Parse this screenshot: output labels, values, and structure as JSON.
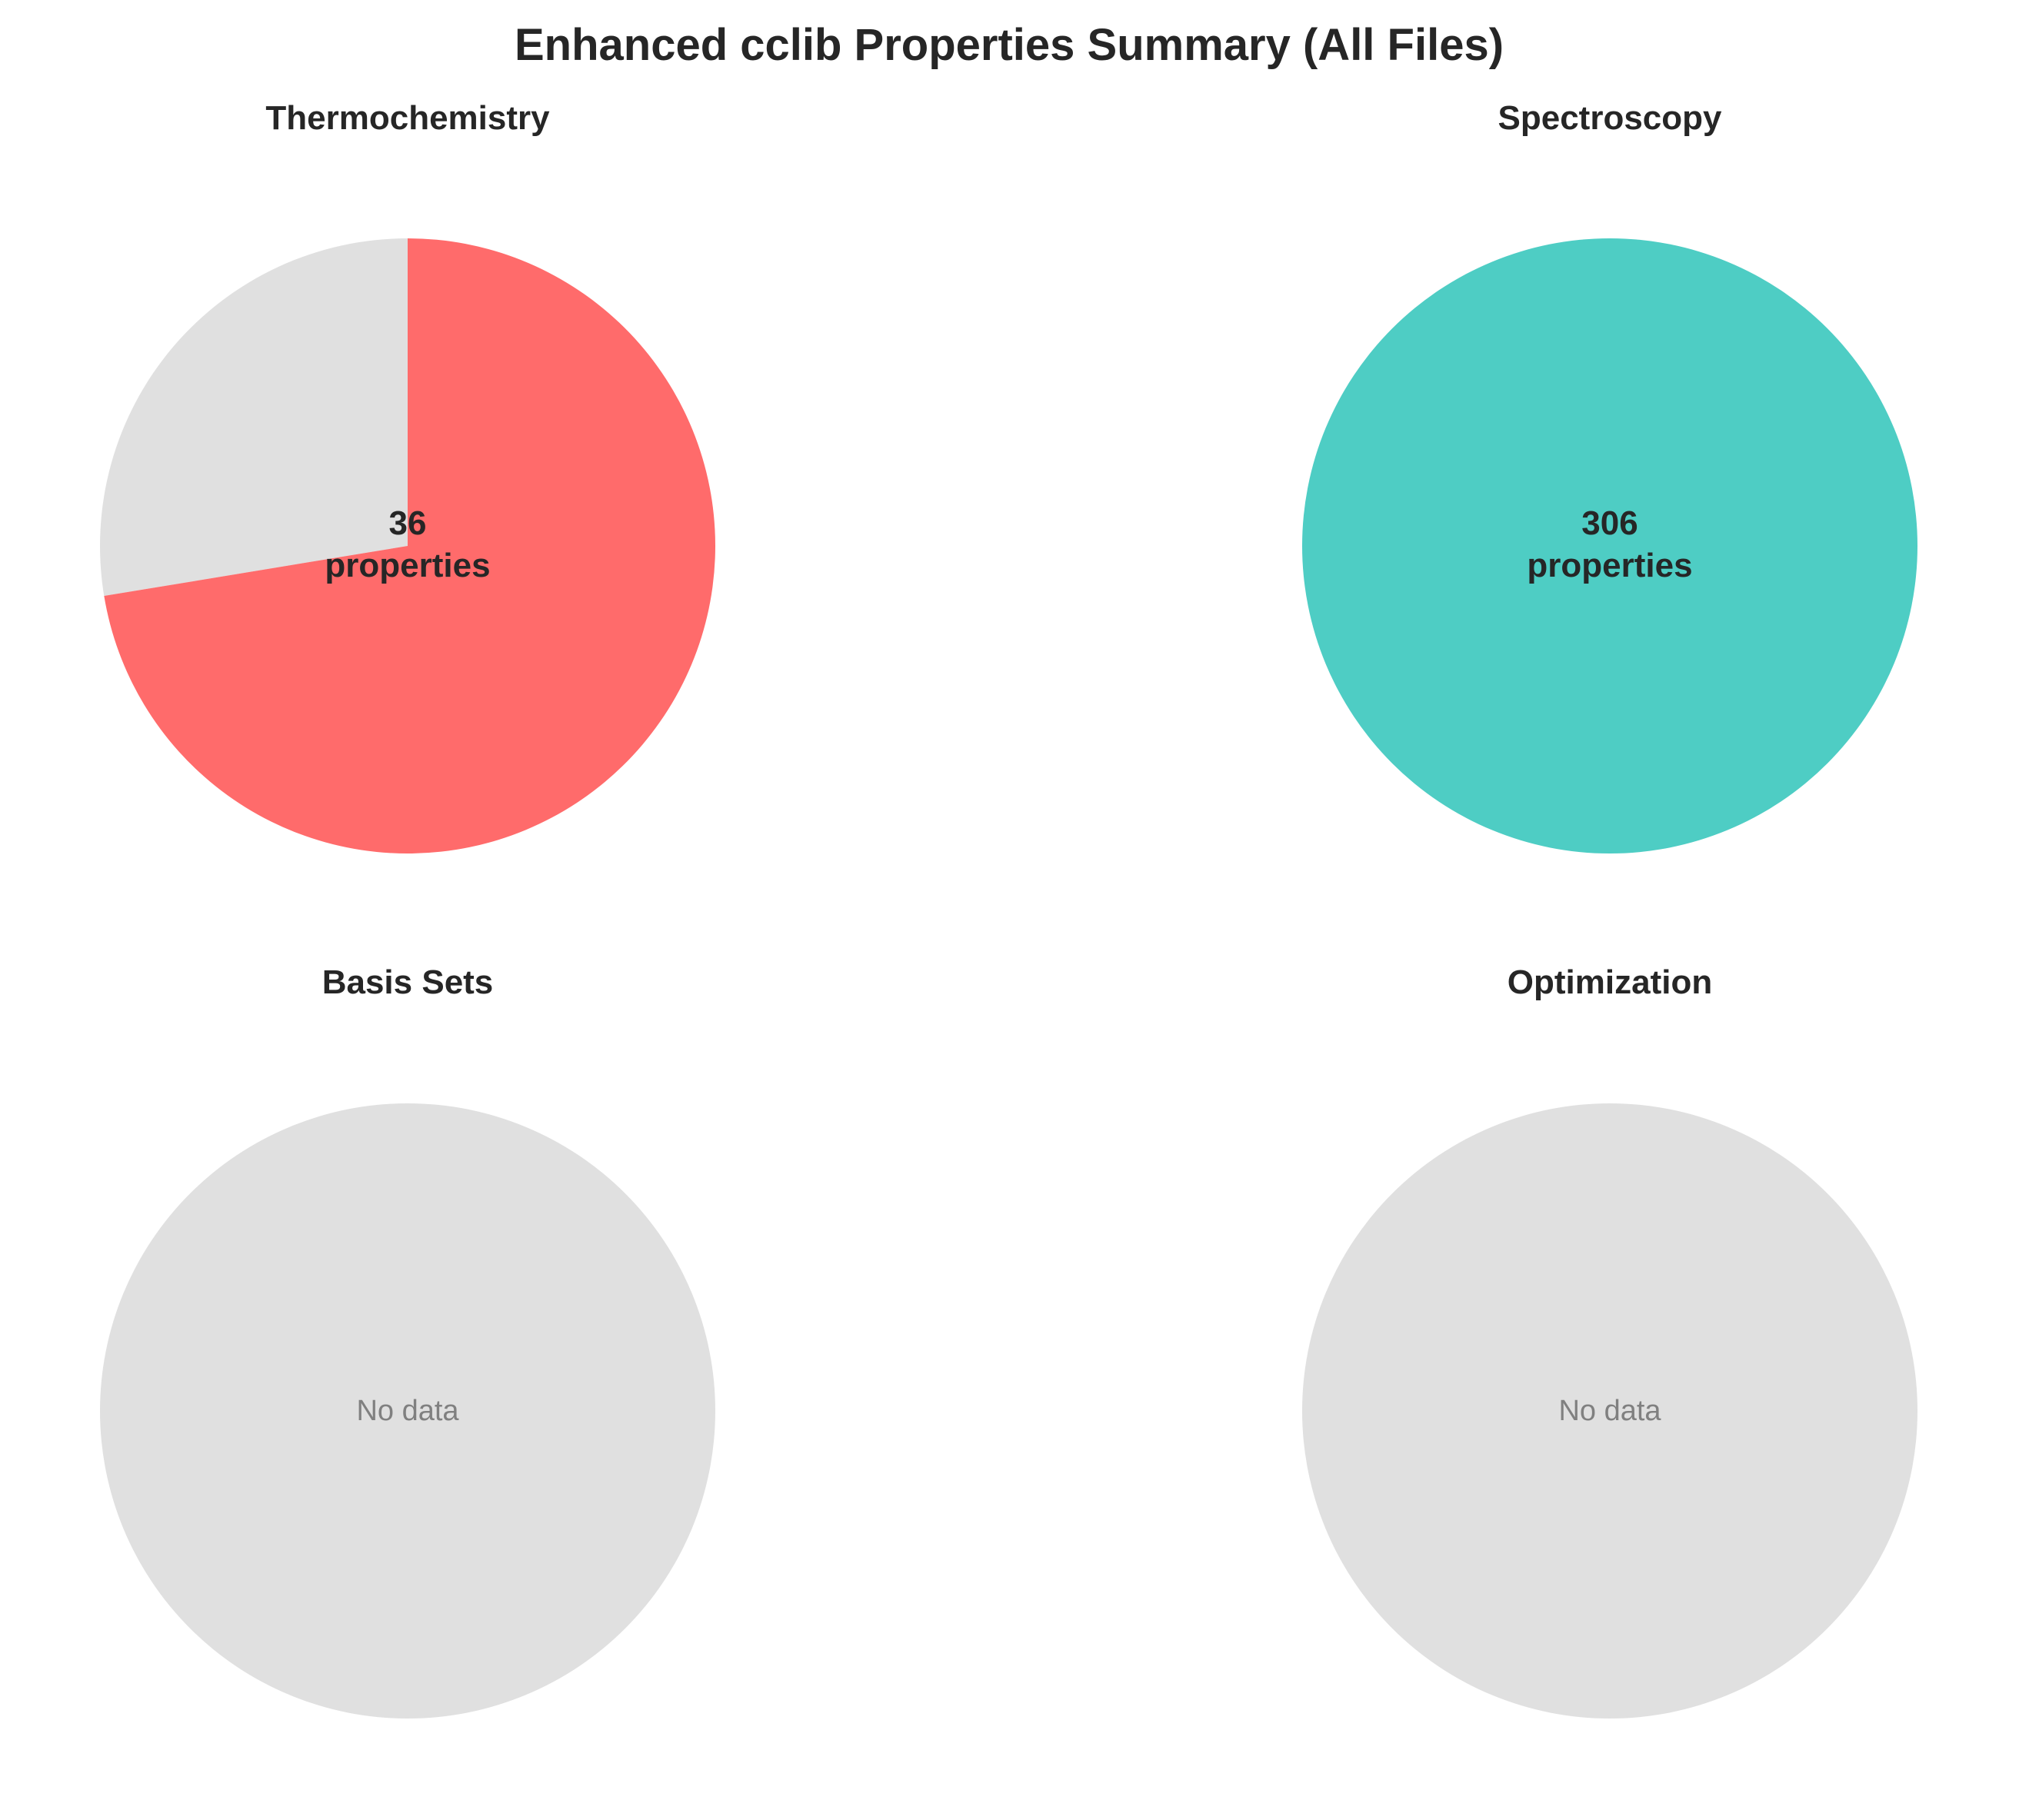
{
  "chart_data": {
    "title": "Enhanced cclib Properties Summary (All Files)",
    "type": "pie",
    "background_color": "#E0E0E0",
    "center_suffix": "properties",
    "panels": [
      {
        "title": "Thermochemistry",
        "count": "36",
        "has_data": true,
        "slices": [
          {
            "value": 0.276,
            "color": "#E0E0E0"
          },
          {
            "value": 0.724,
            "color": "#FF6B6B"
          }
        ]
      },
      {
        "title": "Spectroscopy",
        "count": "306",
        "has_data": true,
        "slices": [
          {
            "value": 1.0,
            "color": "#4ECDC4"
          }
        ]
      },
      {
        "title": "Basis Sets",
        "has_data": false,
        "empty_text": "No data",
        "slices": [
          {
            "value": 1.0,
            "color": "#E0E0E0"
          }
        ]
      },
      {
        "title": "Optimization",
        "has_data": false,
        "empty_text": "No data",
        "slices": [
          {
            "value": 1.0,
            "color": "#E0E0E0"
          }
        ]
      }
    ]
  }
}
